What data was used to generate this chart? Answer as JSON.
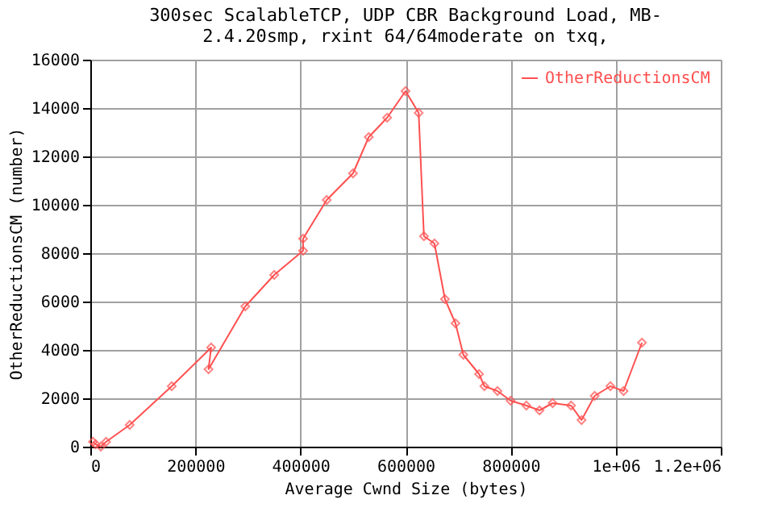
{
  "chart_data": {
    "type": "line",
    "title": [
      "300sec ScalableTCP, UDP CBR Background Load, MB-",
      "2.4.20smp, rxint 64/64moderate on txq,"
    ],
    "xlabel": "Average Cwnd Size (bytes)",
    "ylabel": "OtherReductionsCM (number)",
    "x": [
      5000,
      10000,
      20000,
      30000,
      75000,
      155000,
      230000,
      225000,
      295000,
      350000,
      405000,
      405000,
      450000,
      500000,
      530000,
      565000,
      600000,
      625000,
      635000,
      655000,
      675000,
      695000,
      710000,
      740000,
      750000,
      775000,
      800000,
      830000,
      855000,
      880000,
      915000,
      935000,
      960000,
      990000,
      1015000,
      1050000
    ],
    "series": [
      {
        "name": "OtherReductionsCM",
        "color": "#ff5050",
        "values": [
          200,
          100,
          0,
          200,
          900,
          2500,
          4100,
          3200,
          5800,
          7100,
          8100,
          8600,
          10200,
          11300,
          12800,
          13600,
          14700,
          13800,
          8700,
          8400,
          6100,
          5100,
          3800,
          3000,
          2500,
          2300,
          1900,
          1700,
          1500,
          1800,
          1700,
          1100,
          2100,
          2500,
          2300,
          4300
        ]
      }
    ],
    "xlim": [
      0,
      1200000
    ],
    "xticks": [
      0,
      200000,
      400000,
      600000,
      800000,
      {
        "value": 1000000,
        "label": "1e+06"
      },
      {
        "value": 1200000,
        "label": "1.2e+06"
      }
    ],
    "ylim": [
      0,
      16000
    ],
    "yticks": [
      0,
      2000,
      4000,
      6000,
      8000,
      10000,
      12000,
      14000,
      16000
    ],
    "grid": true,
    "legend": "top right",
    "marker": "diamond",
    "line_style": "solid"
  }
}
